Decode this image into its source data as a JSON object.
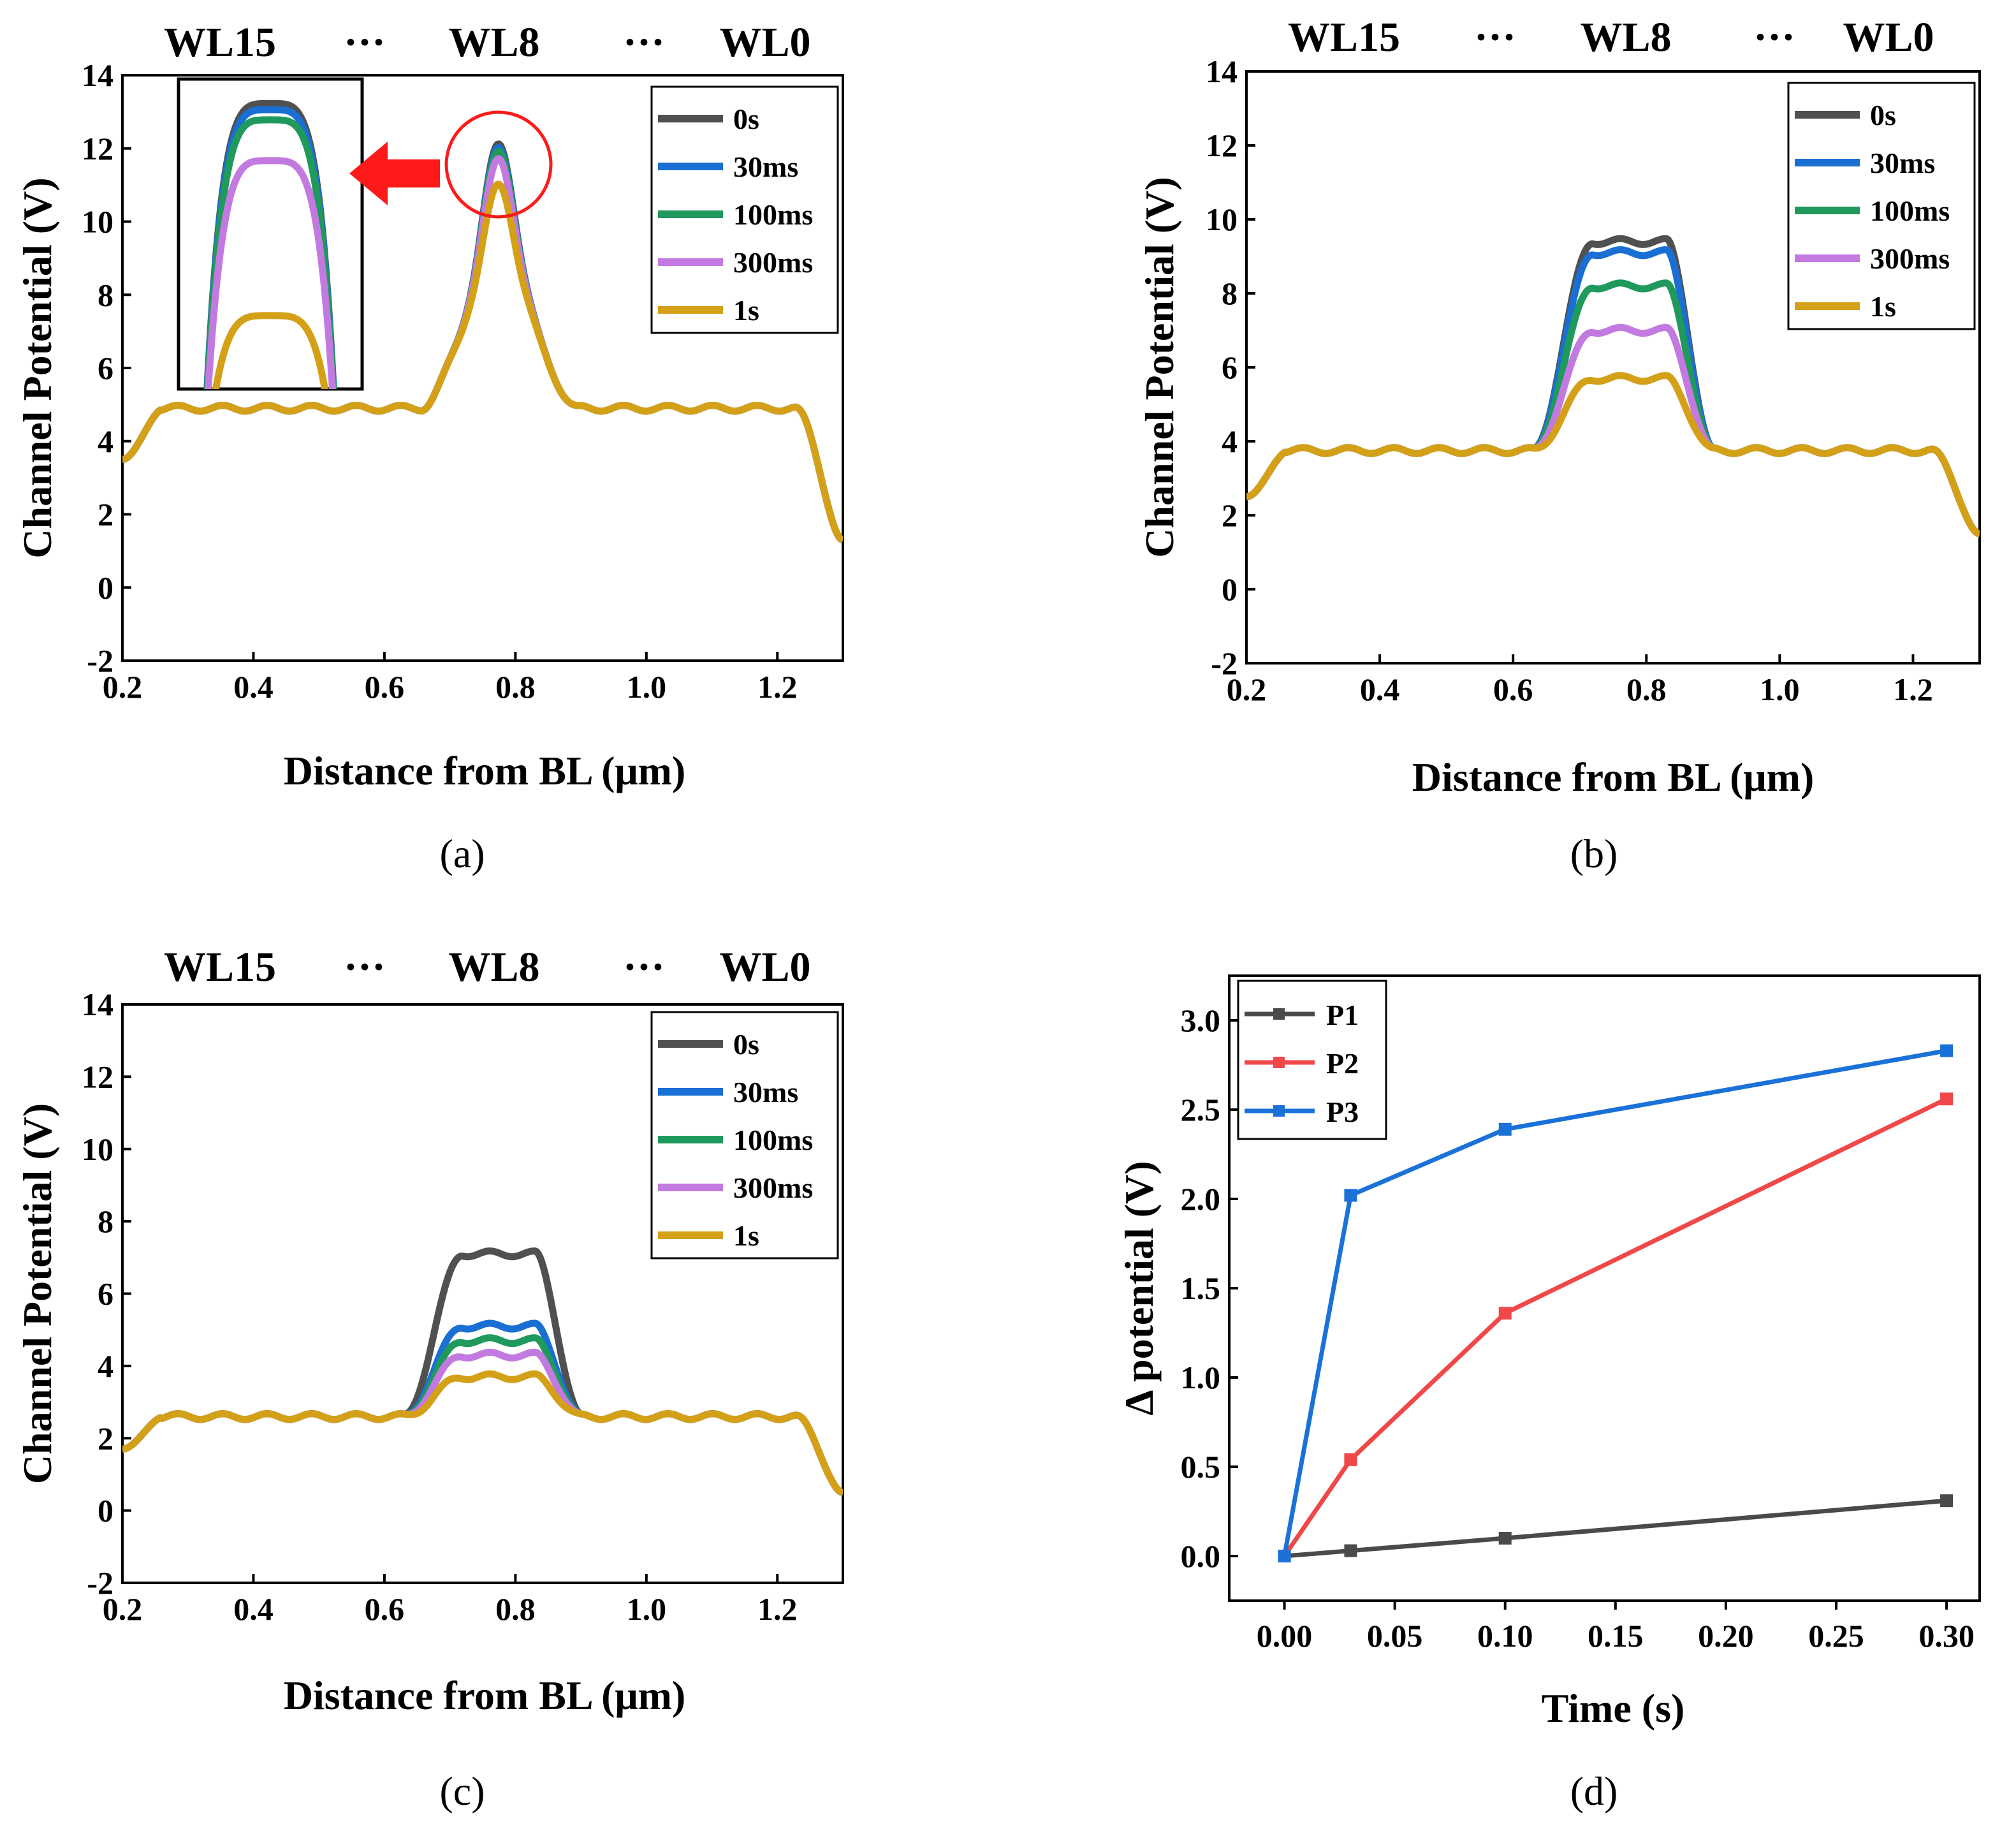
{
  "figure": {
    "wl_labels": [
      "WL15",
      "···",
      "WL8",
      "···",
      "WL0"
    ],
    "potential_ylabel": "Channel Potential (V)",
    "distance_xlabel": "Distance from BL (μm)"
  },
  "chart_data": [
    {
      "id": "a",
      "caption": "(a)",
      "type": "line",
      "xlabel": "Distance from BL (μm)",
      "ylabel": "Channel Potential (V)",
      "xlim": [
        0.2,
        1.3
      ],
      "ylim": [
        -2,
        14
      ],
      "xticks": [
        "0.2",
        "0.4",
        "0.6",
        "0.8",
        "1.0",
        "1.2"
      ],
      "yticks": [
        "-2",
        "0",
        "2",
        "4",
        "6",
        "8",
        "10",
        "12",
        "14"
      ],
      "legend": [
        "0s",
        "30ms",
        "100ms",
        "300ms",
        "1s"
      ],
      "colors": [
        "#505050",
        "#1a6fd4",
        "#1f9a5c",
        "#c27ae0",
        "#d4a017"
      ],
      "base_plateau": 4.9,
      "base_edges": [
        3.5,
        1.3
      ],
      "peak_values": [
        12.1,
        12.0,
        11.9,
        11.7,
        11.0
      ],
      "peak_shape": "sharp",
      "inset_peaks_relative": [
        13.0,
        12.85,
        12.6,
        11.6,
        7.8
      ]
    },
    {
      "id": "b",
      "caption": "(b)",
      "type": "line",
      "xlabel": "Distance from BL (μm)",
      "ylabel": "Channel Potential (V)",
      "xlim": [
        0.2,
        1.3
      ],
      "ylim": [
        -2,
        14
      ],
      "xticks": [
        "0.2",
        "0.4",
        "0.6",
        "0.8",
        "1.0",
        "1.2"
      ],
      "yticks": [
        "-2",
        "0",
        "2",
        "4",
        "6",
        "8",
        "10",
        "12",
        "14"
      ],
      "legend": [
        "0s",
        "30ms",
        "100ms",
        "300ms",
        "1s"
      ],
      "colors": [
        "#505050",
        "#1a6fd4",
        "#1f9a5c",
        "#c27ae0",
        "#d4a017"
      ],
      "base_plateau": 3.75,
      "base_edges": [
        2.5,
        1.5
      ],
      "peak_values": [
        9.4,
        9.1,
        8.2,
        7.0,
        5.7
      ],
      "peak_shape": "flat"
    },
    {
      "id": "c",
      "caption": "(c)",
      "type": "line",
      "xlabel": "Distance from BL (μm)",
      "ylabel": "Channel Potential (V)",
      "xlim": [
        0.2,
        1.3
      ],
      "ylim": [
        -2,
        14
      ],
      "xticks": [
        "0.2",
        "0.4",
        "0.6",
        "0.8",
        "1.0",
        "1.2"
      ],
      "yticks": [
        "-2",
        "0",
        "2",
        "4",
        "6",
        "8",
        "10",
        "12",
        "14"
      ],
      "legend": [
        "0s",
        "30ms",
        "100ms",
        "300ms",
        "1s"
      ],
      "colors": [
        "#505050",
        "#1a6fd4",
        "#1f9a5c",
        "#c27ae0",
        "#d4a017"
      ],
      "base_plateau": 2.6,
      "base_edges": [
        1.7,
        0.5
      ],
      "peak_values": [
        7.1,
        5.1,
        4.7,
        4.3,
        3.7
      ],
      "peak_shape": "flat"
    },
    {
      "id": "d",
      "caption": "(d)",
      "type": "line",
      "xlabel": "Time (s)",
      "ylabel": "Δ potential (V)",
      "xlim": [
        -0.025,
        0.315
      ],
      "ylim": [
        -0.25,
        3.25
      ],
      "xticks": [
        "0.00",
        "0.05",
        "0.10",
        "0.15",
        "0.20",
        "0.25",
        "0.30"
      ],
      "yticks": [
        "0.0",
        "0.5",
        "1.0",
        "1.5",
        "2.0",
        "2.5",
        "3.0"
      ],
      "x": [
        0,
        0.03,
        0.1,
        0.3
      ],
      "series": [
        {
          "name": "P1",
          "color": "#4a4a4a",
          "values": [
            0,
            0.03,
            0.1,
            0.31
          ]
        },
        {
          "name": "P2",
          "color": "#f04848",
          "values": [
            0,
            0.54,
            1.36,
            2.56
          ]
        },
        {
          "name": "P3",
          "color": "#1a72d8",
          "values": [
            0,
            2.02,
            2.39,
            2.83
          ]
        }
      ]
    }
  ]
}
